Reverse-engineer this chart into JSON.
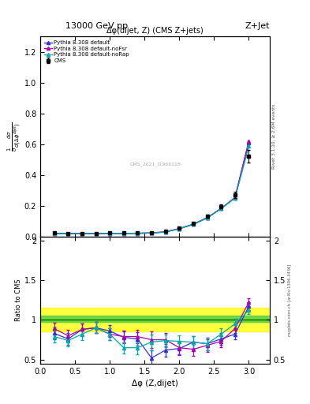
{
  "title_left": "13000 GeV pp",
  "title_right": "Z+Jet",
  "plot_title": "Δφ(dijet, Z) (CMS Z+jets)",
  "xlabel": "Δφ (Z,dijet)",
  "ylabel_main": "$\\frac{1}{\\sigma}\\frac{d\\sigma}{d(\\Delta\\phi^{dijet})}$",
  "ylabel_ratio": "Ratio to CMS",
  "right_label_top": "Rivet 3.1.10, ≥ 2.6M events",
  "right_label_bottom": "mcplots.cern.ch [arXiv:1306.3436]",
  "watermark": "CMS_2021_I1966118",
  "cms_x": [
    0.2,
    0.4,
    0.6,
    0.8,
    1.0,
    1.2,
    1.4,
    1.6,
    1.8,
    2.0,
    2.2,
    2.4,
    2.6,
    2.8,
    3.0
  ],
  "cms_y": [
    0.022,
    0.02,
    0.02,
    0.02,
    0.021,
    0.021,
    0.022,
    0.024,
    0.032,
    0.055,
    0.085,
    0.13,
    0.195,
    0.27,
    0.52
  ],
  "cms_yerr": [
    0.003,
    0.002,
    0.002,
    0.002,
    0.002,
    0.002,
    0.002,
    0.003,
    0.003,
    0.005,
    0.007,
    0.01,
    0.015,
    0.02,
    0.04
  ],
  "py_x": [
    0.2,
    0.4,
    0.6,
    0.8,
    1.0,
    1.2,
    1.4,
    1.6,
    1.8,
    2.0,
    2.2,
    2.4,
    2.6,
    2.8,
    3.0
  ],
  "py_default_y": [
    0.019,
    0.018,
    0.018,
    0.018,
    0.019,
    0.019,
    0.02,
    0.022,
    0.029,
    0.05,
    0.078,
    0.12,
    0.18,
    0.25,
    0.61
  ],
  "py_nofsr_y": [
    0.02,
    0.018,
    0.018,
    0.018,
    0.019,
    0.019,
    0.02,
    0.022,
    0.029,
    0.05,
    0.079,
    0.121,
    0.181,
    0.252,
    0.62
  ],
  "py_norap_y": [
    0.018,
    0.017,
    0.017,
    0.018,
    0.018,
    0.019,
    0.019,
    0.022,
    0.028,
    0.05,
    0.078,
    0.119,
    0.18,
    0.249,
    0.585
  ],
  "ratio_x": [
    0.2,
    0.4,
    0.6,
    0.8,
    1.0,
    1.2,
    1.4,
    1.6,
    1.8,
    2.0,
    2.2,
    2.4,
    2.6,
    2.8,
    3.0
  ],
  "ratio_default": [
    0.83,
    0.76,
    0.88,
    0.9,
    0.86,
    0.78,
    0.76,
    0.52,
    0.62,
    0.64,
    0.72,
    0.7,
    0.76,
    0.82,
    1.17
  ],
  "ratio_default_err": [
    0.07,
    0.07,
    0.07,
    0.07,
    0.07,
    0.07,
    0.08,
    0.1,
    0.08,
    0.08,
    0.08,
    0.08,
    0.07,
    0.06,
    0.05
  ],
  "ratio_nofsr": [
    0.89,
    0.8,
    0.88,
    0.9,
    0.82,
    0.79,
    0.79,
    0.75,
    0.75,
    0.65,
    0.63,
    0.68,
    0.73,
    0.89,
    1.22
  ],
  "ratio_nofsr_err": [
    0.07,
    0.07,
    0.07,
    0.07,
    0.07,
    0.07,
    0.08,
    0.1,
    0.08,
    0.08,
    0.08,
    0.08,
    0.07,
    0.06,
    0.05
  ],
  "ratio_norap": [
    0.79,
    0.74,
    0.82,
    0.9,
    0.82,
    0.65,
    0.65,
    0.72,
    0.74,
    0.73,
    0.72,
    0.7,
    0.82,
    0.95,
    1.12
  ],
  "ratio_norap_err": [
    0.07,
    0.07,
    0.07,
    0.07,
    0.07,
    0.07,
    0.08,
    0.1,
    0.08,
    0.08,
    0.08,
    0.08,
    0.07,
    0.06,
    0.05
  ],
  "color_cms": "#000000",
  "color_default": "#3333cc",
  "color_nofsr": "#aa00aa",
  "color_norap": "#00aaaa",
  "ylim_main": [
    0,
    1.3
  ],
  "yticks_main": [
    0,
    0.2,
    0.4,
    0.6,
    0.8,
    1.0,
    1.2
  ],
  "ylim_ratio": [
    0.45,
    2.05
  ],
  "yticks_ratio": [
    0.5,
    1.0,
    1.5,
    2.0
  ],
  "green_band": [
    0.97,
    1.05
  ],
  "yellow_band": [
    0.85,
    1.15
  ]
}
